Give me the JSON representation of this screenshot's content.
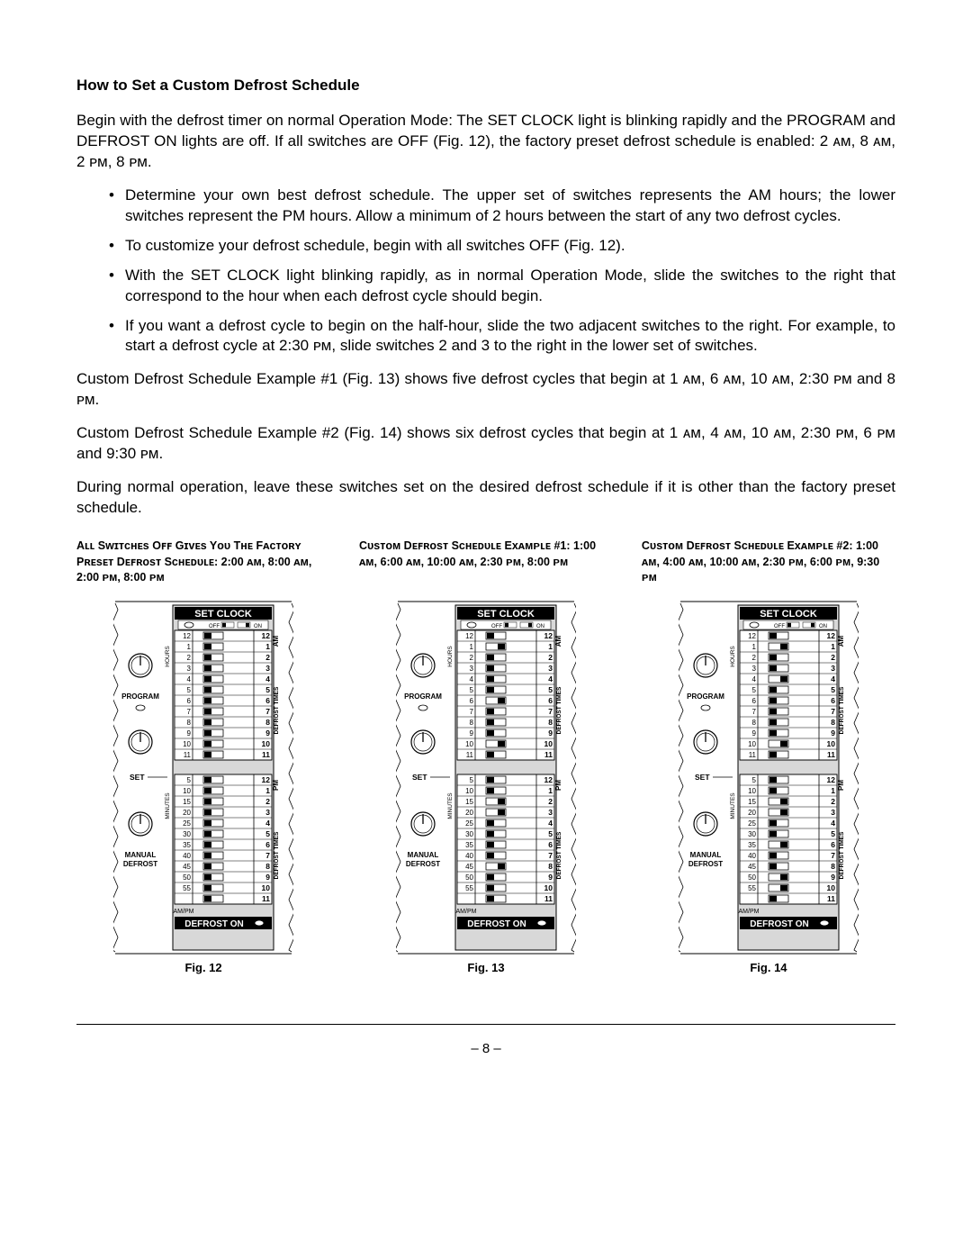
{
  "heading": "How to Set a Custom Defrost Schedule",
  "intro": "Begin with the defrost timer on normal Operation Mode:  The SET CLOCK light is blinking rapidly and the PROGRAM and DEFROST ON lights are off.  If all switches are OFF (Fig. 12), the factory preset defrost schedule is enabled:  2 ᴀᴍ, 8 ᴀᴍ, 2 ᴘᴍ, 8 ᴘᴍ.",
  "bullets": [
    "Determine your own best defrost schedule.  The upper set of switches represents the AM hours; the lower switches represent the PM hours.  Allow a minimum of 2 hours between the start of any two defrost cycles.",
    "To customize your defrost schedule, begin with all switches OFF (Fig. 12).",
    "With the SET CLOCK light blinking rapidly, as in normal Operation Mode, slide the switches to the right that correspond to the hour when each defrost cycle should begin.",
    "If you want a defrost cycle to begin on the half-hour, slide the two adjacent switches to the right.  For example, to start a defrost cycle at 2:30 ᴘᴍ, slide switches 2 and 3 to the right in the lower set of switches."
  ],
  "after1": "Custom Defrost Schedule Example #1 (Fig. 13) shows five defrost cycles that begin at 1 ᴀᴍ, 6 ᴀᴍ, 10 ᴀᴍ, 2:30 ᴘᴍ and 8 ᴘᴍ.",
  "after2": "Custom Defrost Schedule Example #2 (Fig. 14) shows six defrost cycles that begin at 1 ᴀᴍ, 4 ᴀᴍ, 10 ᴀᴍ, 2:30 ᴘᴍ, 6 ᴘᴍ and 9:30 ᴘᴍ.",
  "after3": "During normal operation, leave these switches set on the desired defrost schedule if it is other than the factory preset schedule.",
  "figures": [
    {
      "caption": "Aʟʟ Sᴡɪᴛᴄʜᴇs Oꜰꜰ Gɪᴠᴇs Yᴏᴜ Tʜᴇ Fᴀᴄᴛᴏʀʏ Pʀᴇsᴇᴛ Dᴇꜰʀᴏsᴛ Sᴄʜᴇᴅᴜʟᴇ: 2:00 ᴀᴍ, 8:00 ᴀᴍ, 2:00 ᴘᴍ, 8:00 ᴘᴍ",
      "label": "Fig. 12",
      "top_on": [],
      "bot_on": []
    },
    {
      "caption": "Cᴜsᴛᴏᴍ Dᴇꜰʀᴏsᴛ Sᴄʜᴇᴅᴜʟᴇ Exᴀᴍᴘʟᴇ #1: 1:00 ᴀᴍ, 6:00 ᴀᴍ, 10:00 ᴀᴍ, 2:30 ᴘᴍ, 8:00 ᴘᴍ",
      "label": "Fig. 13",
      "top_on": [
        1,
        6,
        10
      ],
      "bot_on": [
        2,
        3,
        8
      ]
    },
    {
      "caption": "Cᴜsᴛᴏᴍ Dᴇꜰʀᴏsᴛ Sᴄʜᴇᴅᴜʟᴇ Exᴀᴍᴘʟᴇ #2: 1:00 ᴀᴍ, 4:00 ᴀᴍ, 10:00 ᴀᴍ, 2:30 ᴘᴍ, 6:00 ᴘᴍ, 9:30 ᴘᴍ",
      "label": "Fig. 14",
      "top_on": [
        1,
        4,
        10
      ],
      "bot_on": [
        2,
        3,
        6,
        9,
        10
      ]
    }
  ],
  "panel": {
    "top_left_labels": [
      "12",
      "1",
      "2",
      "3",
      "4",
      "5",
      "6",
      "7",
      "8",
      "9",
      "10",
      "11"
    ],
    "top_right_labels": [
      "12",
      "1",
      "2",
      "3",
      "4",
      "5",
      "6",
      "7",
      "8",
      "9",
      "10",
      "11"
    ],
    "bot_left_labels": [
      "5",
      "10",
      "15",
      "20",
      "25",
      "30",
      "35",
      "40",
      "45",
      "50",
      "55"
    ],
    "bot_right_labels": [
      "12",
      "1",
      "2",
      "3",
      "4",
      "5",
      "6",
      "7",
      "8",
      "9",
      "10",
      "11"
    ],
    "set_clock": "SET CLOCK",
    "off": "OFF",
    "on": "ON",
    "hours": "HOURS",
    "minutes": "MINUTES",
    "defrost_times": "DEFROST TIMES",
    "am": "AM",
    "pm": "PM",
    "program": "PROGRAM",
    "set": "SET",
    "manual": "MANUAL",
    "defrost": "DEFROST",
    "defrost_on": "DEFROST ON",
    "ampm": "AM/PM"
  },
  "page_number": "– 8 –"
}
